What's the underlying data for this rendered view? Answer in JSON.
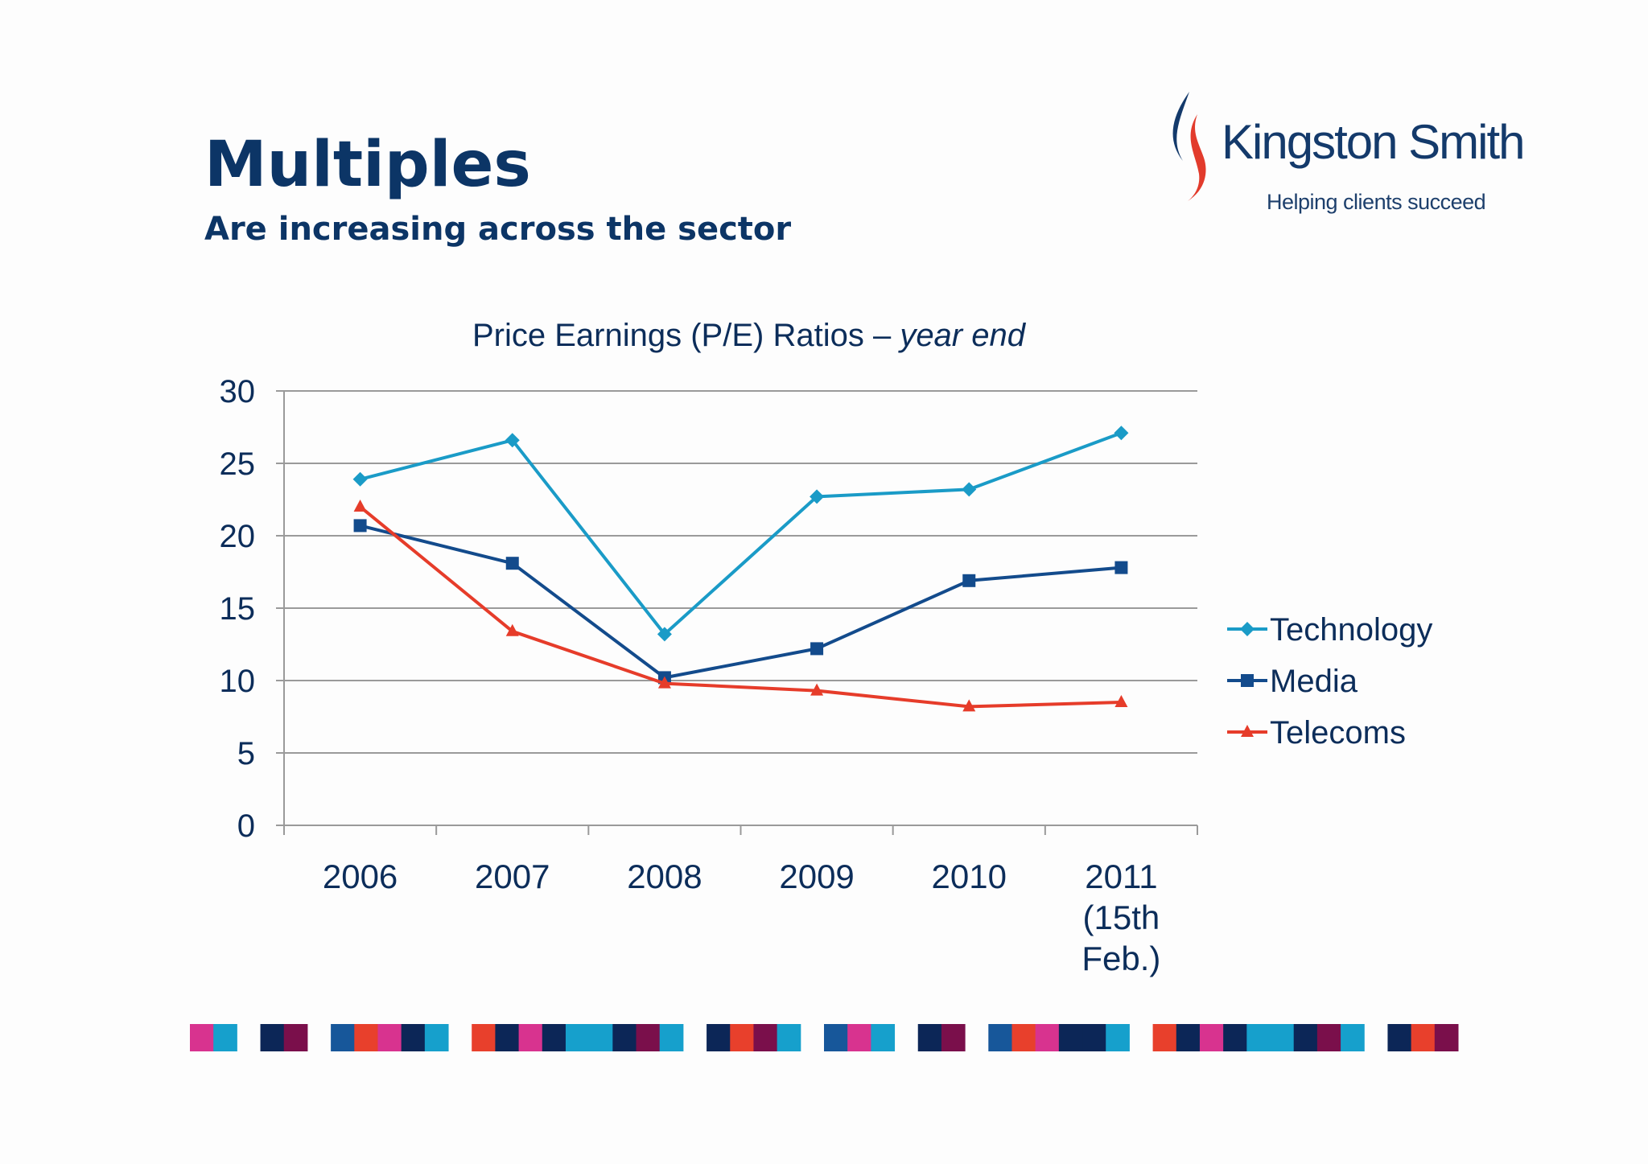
{
  "slide": {
    "title": "Multiples",
    "subtitle": "Are increasing across the sector"
  },
  "logo": {
    "name": "Kingston Smith",
    "tagline": "Helping clients succeed"
  },
  "colors": {
    "title": "#0c3566",
    "technology": "#1a9bc7",
    "media": "#134b8c",
    "telecoms": "#e63c2a",
    "grid": "#9a9a9a",
    "axis_text": "#0c2d5a"
  },
  "chart_data": {
    "type": "line",
    "title": "Price Earnings (P/E) Ratios – ",
    "title_italic": "year end",
    "categories": [
      "2006",
      "2007",
      "2008",
      "2009",
      "2010",
      "2011 (15th Feb.)"
    ],
    "category_lines": [
      [
        "2006"
      ],
      [
        "2007"
      ],
      [
        "2008"
      ],
      [
        "2009"
      ],
      [
        "2010"
      ],
      [
        "2011",
        "(15th",
        "Feb.)"
      ]
    ],
    "ylim": [
      0,
      30
    ],
    "yticks": [
      "0",
      "5",
      "10",
      "15",
      "20",
      "25",
      "30"
    ],
    "grid": true,
    "legend_position": "right",
    "series": [
      {
        "name": "Technology",
        "marker": "diamond",
        "values": [
          23.9,
          26.6,
          13.2,
          22.7,
          23.2,
          27.1
        ]
      },
      {
        "name": "Media",
        "marker": "square",
        "values": [
          20.7,
          18.1,
          10.2,
          12.2,
          16.9,
          17.8
        ]
      },
      {
        "name": "Telecoms",
        "marker": "triangle",
        "values": [
          22.0,
          13.4,
          9.8,
          9.3,
          8.2,
          8.5
        ]
      }
    ]
  }
}
